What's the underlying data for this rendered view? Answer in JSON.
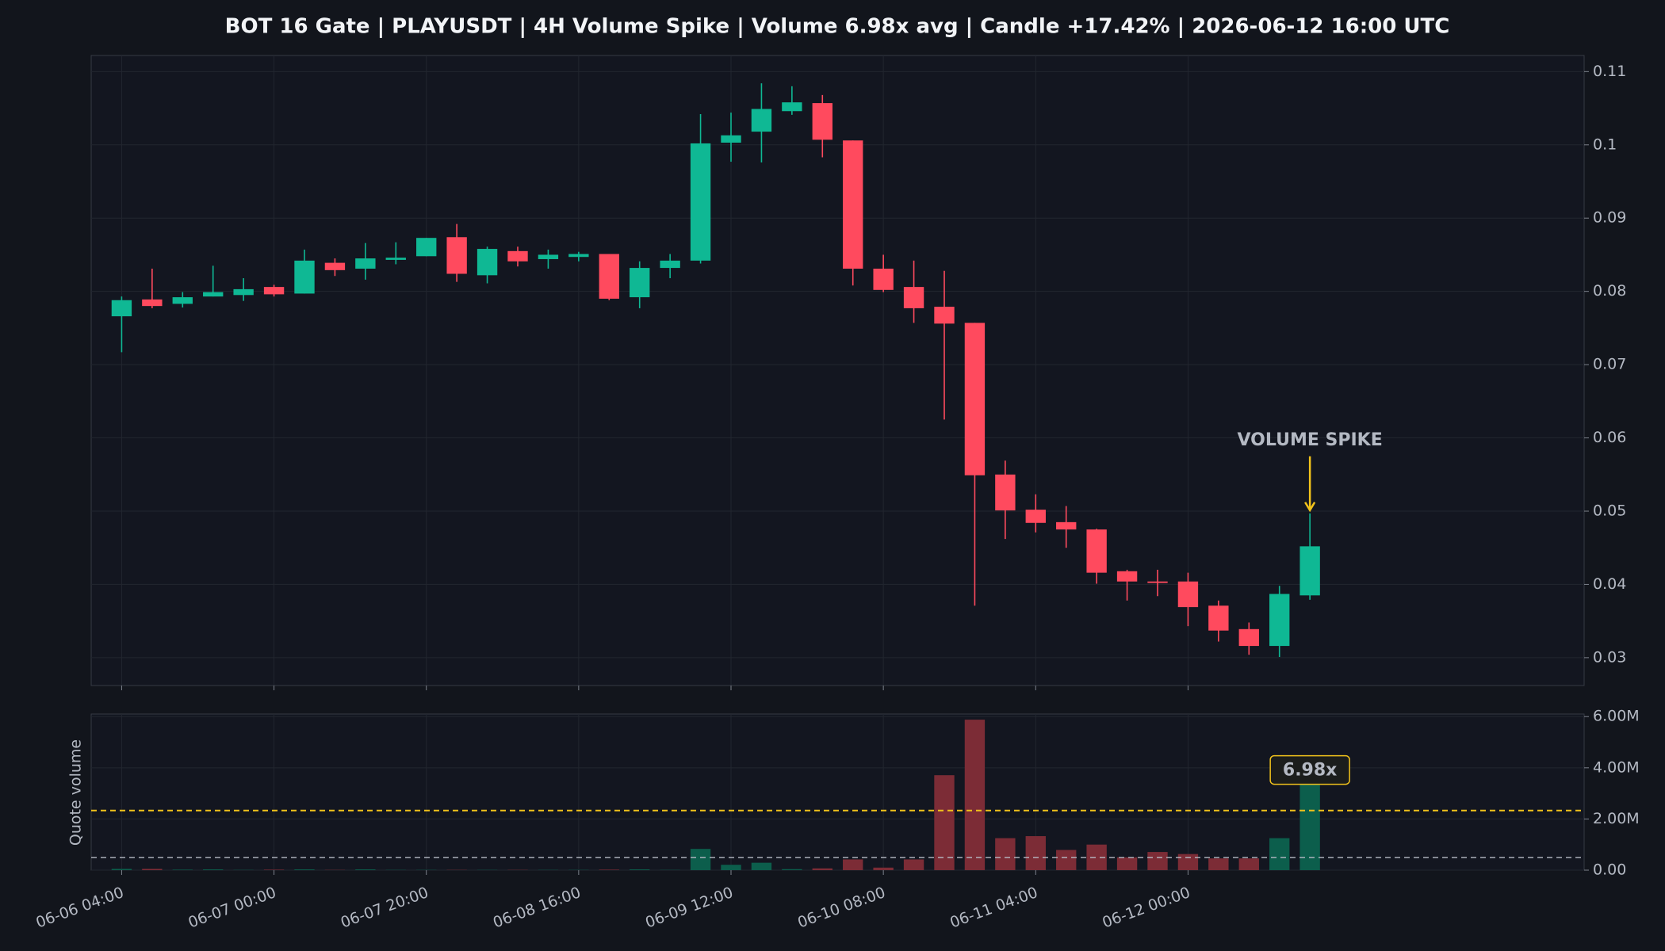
{
  "chart_data": [
    {
      "type": "candlestick",
      "title": "BOT 16 Gate | PLAYUSDT | 4H Volume Spike | Volume 6.98x avg | Candle +17.42% | 2026-06-12 16:00 UTC",
      "open": [
        0.0766,
        0.0789,
        0.0783,
        0.0793,
        0.0795,
        0.0806,
        0.0797,
        0.0839,
        0.0831,
        0.0843,
        0.0848,
        0.0874,
        0.0822,
        0.0855,
        0.0844,
        0.0847,
        0.0851,
        0.0792,
        0.0832,
        0.0842,
        0.1003,
        0.1018,
        0.1046,
        0.1057,
        0.1006,
        0.0831,
        0.0806,
        0.0779,
        0.0757,
        0.055,
        0.0502,
        0.0485,
        0.0475,
        0.0418,
        0.0404,
        0.0404,
        0.0371,
        0.0339,
        0.0316,
        0.0385
      ],
      "high": [
        0.0793,
        0.0831,
        0.0799,
        0.0835,
        0.0818,
        0.0809,
        0.0857,
        0.0845,
        0.0866,
        0.0867,
        0.0873,
        0.0892,
        0.0861,
        0.0861,
        0.0857,
        0.0854,
        0.0851,
        0.0841,
        0.0851,
        0.1042,
        0.1044,
        0.1084,
        0.108,
        0.1068,
        0.1006,
        0.085,
        0.0842,
        0.0828,
        0.0757,
        0.0569,
        0.0523,
        0.0507,
        0.0476,
        0.042,
        0.042,
        0.0416,
        0.0378,
        0.0348,
        0.0398,
        0.0497
      ],
      "low": [
        0.0717,
        0.0777,
        0.0778,
        0.0793,
        0.0787,
        0.0793,
        0.0797,
        0.0821,
        0.0816,
        0.0837,
        0.0848,
        0.0813,
        0.0811,
        0.0834,
        0.0831,
        0.0841,
        0.0788,
        0.0777,
        0.0818,
        0.0838,
        0.0977,
        0.0976,
        0.1041,
        0.0983,
        0.0808,
        0.0799,
        0.0757,
        0.0625,
        0.0371,
        0.0462,
        0.0471,
        0.045,
        0.0401,
        0.0378,
        0.0384,
        0.0343,
        0.0322,
        0.0304,
        0.0301,
        0.0379
      ],
      "close": [
        0.0788,
        0.078,
        0.0792,
        0.0799,
        0.0803,
        0.0796,
        0.0842,
        0.0829,
        0.0845,
        0.0846,
        0.0873,
        0.0824,
        0.0858,
        0.0841,
        0.085,
        0.0851,
        0.079,
        0.0832,
        0.0842,
        0.1002,
        0.1013,
        0.1049,
        0.1058,
        0.1007,
        0.0831,
        0.0802,
        0.0777,
        0.0756,
        0.0549,
        0.0501,
        0.0484,
        0.0475,
        0.0416,
        0.0404,
        0.0402,
        0.0369,
        0.0337,
        0.0316,
        0.0387,
        0.0452
      ],
      "up_color": "#0fb894",
      "down_color": "#ff4a5e",
      "ylim": [
        0.0262,
        0.1122
      ],
      "yticks": [
        0.03,
        0.04,
        0.05,
        0.06,
        0.07,
        0.08,
        0.09,
        0.1,
        0.11
      ],
      "annotation": "VOLUME SPIKE",
      "annotation_color": "#f1c21b",
      "grid": true
    },
    {
      "type": "bar",
      "categories": [
        "06-06 04:00",
        null,
        null,
        null,
        null,
        "06-07 00:00",
        null,
        null,
        null,
        null,
        "06-07 20:00",
        null,
        null,
        null,
        null,
        "06-08 16:00",
        null,
        null,
        null,
        null,
        "06-09 12:00",
        null,
        null,
        null,
        null,
        "06-10 08:00",
        null,
        null,
        null,
        null,
        "06-11 04:00",
        null,
        null,
        null,
        null,
        "06-12 00:00",
        null,
        null,
        null,
        null
      ],
      "xlim": [
        -1,
        48
      ],
      "values": [
        50000,
        50000,
        20000,
        30000,
        10000,
        20000,
        30000,
        10000,
        30000,
        10000,
        10000,
        10000,
        10000,
        10000,
        10000,
        10000,
        20000,
        30000,
        10000,
        830000,
        210000,
        290000,
        40000,
        70000,
        420000,
        100000,
        420000,
        3710000,
        5880000,
        1250000,
        1330000,
        790000,
        1000000,
        500000,
        710000,
        630000,
        460000,
        460000,
        1250000,
        3450000
      ],
      "up_color": "#0c5e4c",
      "down_color": "#7c2c36",
      "ylabel": "Quote volume",
      "ylim": [
        0,
        6100000
      ],
      "yticks": [
        {
          "value": 0,
          "label": "0.00"
        },
        {
          "value": 2000000,
          "label": "2.00M"
        },
        {
          "value": 4000000,
          "label": "4.00M"
        },
        {
          "value": 6000000,
          "label": "6.00M"
        }
      ],
      "reference_lines": [
        {
          "value": 494000,
          "color": "#b8bcc6"
        },
        {
          "value": 2330000,
          "color": "#f1c21b"
        }
      ],
      "ratio_label": "6.98x",
      "grid": true
    }
  ]
}
